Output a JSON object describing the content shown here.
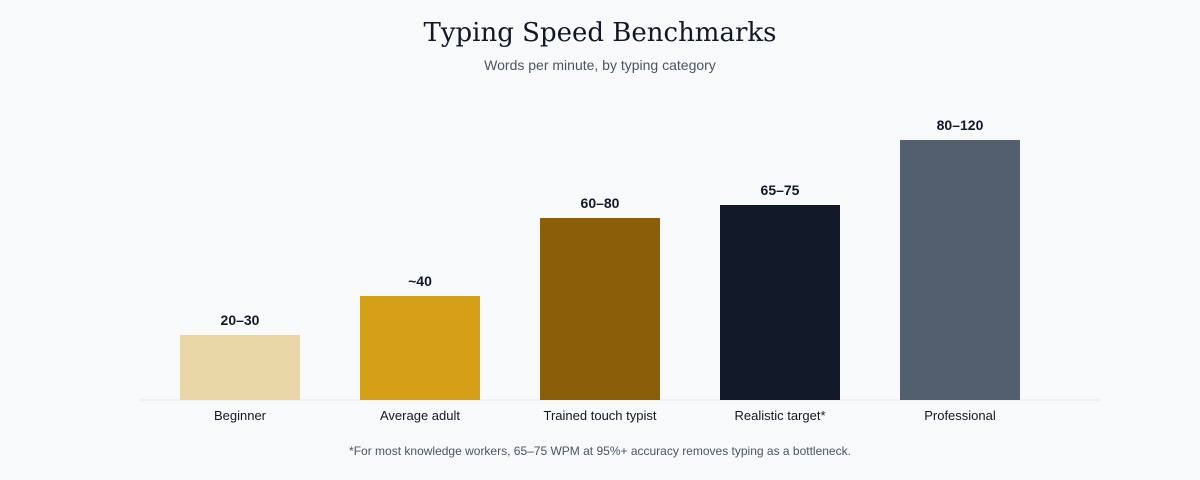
{
  "chart_data": {
    "type": "bar",
    "title": "Typing Speed Benchmarks",
    "subtitle": "Words per minute, by typing category",
    "xlabel": "",
    "ylabel": "",
    "ylim": [
      0,
      130
    ],
    "grid": false,
    "legend": "none",
    "categories": [
      "Beginner",
      "Average adult",
      "Trained touch typist",
      "Realistic target*",
      "Professional"
    ],
    "values": [
      25,
      40,
      70,
      75,
      100
    ],
    "data_labels": [
      "20–30",
      "~40",
      "60–80",
      "65–75",
      "80–120"
    ],
    "colors": [
      "#e9d7a8",
      "#d4a017",
      "#8b5e0a",
      "#111827",
      "#525f6e"
    ],
    "footnote": "*For most knowledge workers, 65–75 WPM at 95%+ accuracy removes typing as a bottleneck."
  }
}
